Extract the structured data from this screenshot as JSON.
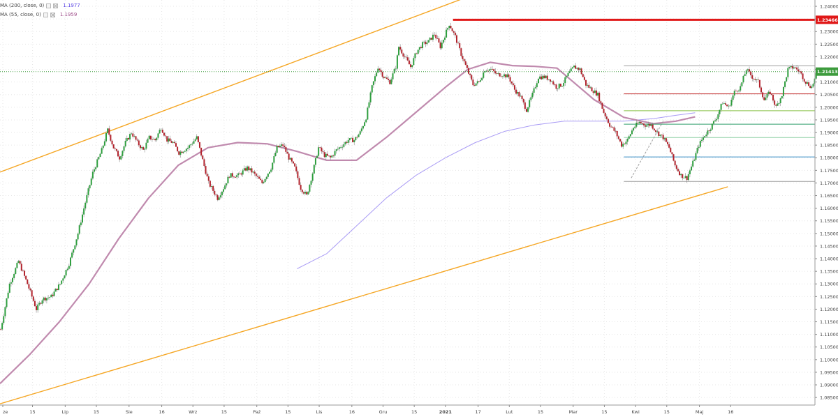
{
  "legend": {
    "ma200_label": "MA (200, close, 0)",
    "ma200_value": "1.1977",
    "ma200_color": "#7b61ff",
    "ma55_label": "MA (55, close, 0)",
    "ma55_value": "1.1959",
    "ma55_color": "#a0508c"
  },
  "chart_data": {
    "type": "candlestick",
    "title": "",
    "xlabel": "",
    "ylabel": "",
    "ylim": [
      1.082,
      1.2425
    ],
    "grid": true,
    "y_ticks": [
      "1.08500",
      "1.09000",
      "1.09500",
      "1.10000",
      "1.10500",
      "1.11000",
      "1.11500",
      "1.12000",
      "1.12500",
      "1.13000",
      "1.13500",
      "1.14000",
      "1.14500",
      "1.15000",
      "1.15500",
      "1.16000",
      "1.16500",
      "1.17000",
      "1.17500",
      "1.18000",
      "1.18500",
      "1.19000",
      "1.19500",
      "1.20000",
      "1.20500",
      "1.21000",
      "1.21500",
      "1.22000",
      "1.22500",
      "1.23000",
      "1.23500",
      "1.24000"
    ],
    "x_labels": [
      "ze",
      "15",
      "Lip",
      "15",
      "Sie",
      "16",
      "Wrz",
      "15",
      "Paź",
      "15",
      "Lis",
      "16",
      "Gru",
      "15",
      "2021",
      "17",
      "Lut",
      "15",
      "Mar",
      "15",
      "Kwi",
      "15",
      "Maj",
      "16"
    ],
    "x_label_bars": [
      0,
      20,
      42,
      63,
      85,
      107,
      128,
      149,
      171,
      192,
      213,
      235,
      256,
      277,
      298,
      320,
      341,
      362,
      384,
      405,
      426,
      447,
      469,
      490
    ],
    "current_price": "1.21413",
    "current_price_color": "#3c9b3c",
    "resistance_price": "1.23466",
    "resistance_color": "#e01818",
    "resistance_start_bar": 305,
    "channel_color": "#f5a623",
    "channel_upper": [
      [
        0,
        1.1743
      ],
      [
        340,
        1.2493
      ]
    ],
    "channel_lower": [
      [
        0,
        1.0825
      ],
      [
        490,
        1.1685
      ]
    ],
    "ma55_color": "#c08aae",
    "ma200_color": "#a99bf5",
    "ma55_points": [
      [
        0,
        1.0905
      ],
      [
        20,
        1.102
      ],
      [
        40,
        1.115
      ],
      [
        60,
        1.13
      ],
      [
        80,
        1.148
      ],
      [
        100,
        1.164
      ],
      [
        120,
        1.177
      ],
      [
        140,
        1.184
      ],
      [
        160,
        1.186
      ],
      [
        180,
        1.1855
      ],
      [
        200,
        1.1825
      ],
      [
        220,
        1.179
      ],
      [
        240,
        1.179
      ],
      [
        260,
        1.188
      ],
      [
        280,
        1.198
      ],
      [
        300,
        1.208
      ],
      [
        315,
        1.215
      ],
      [
        330,
        1.2178
      ],
      [
        345,
        1.2165
      ],
      [
        360,
        1.2162
      ],
      [
        375,
        1.2155
      ],
      [
        385,
        1.2105
      ],
      [
        400,
        1.203
      ],
      [
        420,
        1.196
      ],
      [
        440,
        1.1935
      ],
      [
        455,
        1.1945
      ],
      [
        468,
        1.1962
      ]
    ],
    "ma200_points": [
      [
        200,
        1.136
      ],
      [
        220,
        1.142
      ],
      [
        240,
        1.153
      ],
      [
        260,
        1.164
      ],
      [
        280,
        1.173
      ],
      [
        300,
        1.18
      ],
      [
        320,
        1.186
      ],
      [
        340,
        1.1905
      ],
      [
        360,
        1.193
      ],
      [
        380,
        1.1945
      ],
      [
        400,
        1.1945
      ],
      [
        420,
        1.1945
      ],
      [
        440,
        1.1955
      ],
      [
        455,
        1.1968
      ],
      [
        468,
        1.1978
      ]
    ],
    "fib_levels": [
      {
        "value": 1.2164,
        "color": "#9b9b9b"
      },
      {
        "value": 1.2053,
        "color": "#c02424"
      },
      {
        "value": 1.1986,
        "color": "#8ac24a"
      },
      {
        "value": 1.1933,
        "color": "#2f9e6a"
      },
      {
        "value": 1.188,
        "color": "#8fd0a6"
      },
      {
        "value": 1.1803,
        "color": "#3a8fc8"
      },
      {
        "value": 1.1706,
        "color": "#9b9b9b"
      }
    ],
    "fib_start_bar": 420,
    "trend_line": [
      [
        425,
        1.172
      ],
      [
        447,
        1.195
      ]
    ],
    "anchors": [
      [
        0,
        1.112
      ],
      [
        6,
        1.13
      ],
      [
        12,
        1.139
      ],
      [
        18,
        1.13
      ],
      [
        24,
        1.12
      ],
      [
        28,
        1.124
      ],
      [
        34,
        1.125
      ],
      [
        40,
        1.13
      ],
      [
        46,
        1.138
      ],
      [
        52,
        1.15
      ],
      [
        56,
        1.16
      ],
      [
        62,
        1.174
      ],
      [
        68,
        1.183
      ],
      [
        72,
        1.191
      ],
      [
        76,
        1.184
      ],
      [
        80,
        1.18
      ],
      [
        84,
        1.186
      ],
      [
        88,
        1.19
      ],
      [
        92,
        1.186
      ],
      [
        96,
        1.183
      ],
      [
        100,
        1.188
      ],
      [
        104,
        1.187
      ],
      [
        108,
        1.192
      ],
      [
        112,
        1.187
      ],
      [
        116,
        1.186
      ],
      [
        120,
        1.182
      ],
      [
        126,
        1.184
      ],
      [
        132,
        1.188
      ],
      [
        136,
        1.179
      ],
      [
        140,
        1.17
      ],
      [
        146,
        1.164
      ],
      [
        150,
        1.168
      ],
      [
        154,
        1.173
      ],
      [
        160,
        1.173
      ],
      [
        166,
        1.176
      ],
      [
        170,
        1.174
      ],
      [
        176,
        1.17
      ],
      [
        182,
        1.176
      ],
      [
        186,
        1.184
      ],
      [
        190,
        1.185
      ],
      [
        194,
        1.18
      ],
      [
        198,
        1.176
      ],
      [
        202,
        1.168
      ],
      [
        206,
        1.165
      ],
      [
        210,
        1.174
      ],
      [
        214,
        1.184
      ],
      [
        218,
        1.181
      ],
      [
        222,
        1.18
      ],
      [
        226,
        1.183
      ],
      [
        230,
        1.185
      ],
      [
        234,
        1.187
      ],
      [
        238,
        1.187
      ],
      [
        242,
        1.19
      ],
      [
        246,
        1.196
      ],
      [
        250,
        1.208
      ],
      [
        254,
        1.216
      ],
      [
        258,
        1.212
      ],
      [
        262,
        1.21
      ],
      [
        266,
        1.216
      ],
      [
        268,
        1.224
      ],
      [
        272,
        1.22
      ],
      [
        276,
        1.216
      ],
      [
        280,
        1.222
      ],
      [
        284,
        1.225
      ],
      [
        288,
        1.226
      ],
      [
        292,
        1.229
      ],
      [
        296,
        1.224
      ],
      [
        300,
        1.23
      ],
      [
        302,
        1.233
      ],
      [
        306,
        1.228
      ],
      [
        310,
        1.221
      ],
      [
        314,
        1.215
      ],
      [
        318,
        1.209
      ],
      [
        322,
        1.21
      ],
      [
        326,
        1.215
      ],
      [
        330,
        1.215
      ],
      [
        334,
        1.213
      ],
      [
        338,
        1.213
      ],
      [
        342,
        1.212
      ],
      [
        346,
        1.207
      ],
      [
        350,
        1.204
      ],
      [
        354,
        1.199
      ],
      [
        358,
        1.205
      ],
      [
        362,
        1.212
      ],
      [
        366,
        1.212
      ],
      [
        370,
        1.211
      ],
      [
        374,
        1.208
      ],
      [
        378,
        1.209
      ],
      [
        382,
        1.213
      ],
      [
        386,
        1.216
      ],
      [
        390,
        1.215
      ],
      [
        394,
        1.209
      ],
      [
        398,
        1.207
      ],
      [
        402,
        1.205
      ],
      [
        406,
        1.198
      ],
      [
        410,
        1.193
      ],
      [
        414,
        1.19
      ],
      [
        418,
        1.185
      ],
      [
        422,
        1.187
      ],
      [
        426,
        1.192
      ],
      [
        430,
        1.194
      ],
      [
        434,
        1.193
      ],
      [
        438,
        1.193
      ],
      [
        442,
        1.19
      ],
      [
        446,
        1.188
      ],
      [
        450,
        1.184
      ],
      [
        454,
        1.177
      ],
      [
        458,
        1.173
      ],
      [
        462,
        1.172
      ],
      [
        466,
        1.178
      ],
      [
        470,
        1.185
      ],
      [
        474,
        1.189
      ],
      [
        478,
        1.192
      ],
      [
        482,
        1.196
      ],
      [
        486,
        1.202
      ],
      [
        490,
        1.2
      ],
      [
        494,
        1.206
      ],
      [
        498,
        1.208
      ],
      [
        502,
        1.215
      ],
      [
        506,
        1.212
      ],
      [
        510,
        1.21
      ],
      [
        514,
        1.203
      ],
      [
        518,
        1.206
      ],
      [
        522,
        1.2
      ],
      [
        526,
        1.205
      ],
      [
        530,
        1.215
      ],
      [
        534,
        1.216
      ],
      [
        538,
        1.214
      ],
      [
        542,
        1.21
      ],
      [
        546,
        1.208
      ],
      [
        550,
        1.2141
      ]
    ]
  }
}
